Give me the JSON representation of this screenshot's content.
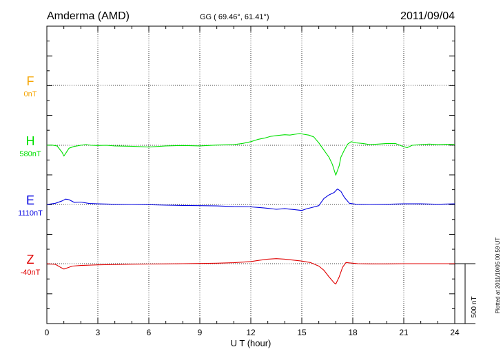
{
  "header": {
    "station": "Amderma (AMD)",
    "coords": "GG ( 69.46°,  61.41°)",
    "date": "2011/09/04"
  },
  "footer": {
    "plotted": "Plotted at 2011/10/05 00:59 UT"
  },
  "chart_data": {
    "type": "line",
    "title": "Amderma (AMD)",
    "xlabel": "U T (hour)",
    "xlim": [
      0,
      24
    ],
    "xticks": [
      "0",
      "3",
      "6",
      "9",
      "12",
      "15",
      "18",
      "21",
      "24"
    ],
    "grid": true,
    "scale_bar": {
      "label": "500 nT",
      "value": 500
    },
    "series": [
      {
        "name": "F",
        "baseline_label": "0nT",
        "color": "#f5a500",
        "x": [],
        "y": []
      },
      {
        "name": "H",
        "baseline_label": "580nT",
        "color": "#00e000",
        "x": [
          0,
          0.3,
          0.6,
          0.9,
          1.0,
          1.1,
          1.3,
          1.6,
          2.0,
          2.3,
          2.6,
          3.0,
          3.5,
          4.0,
          5.0,
          6.0,
          7.0,
          8.0,
          9.0,
          10.0,
          11.0,
          11.5,
          12.0,
          12.4,
          12.8,
          13.2,
          13.6,
          14.0,
          14.3,
          14.6,
          14.9,
          15.1,
          15.4,
          15.7,
          16.0,
          16.2,
          16.4,
          16.6,
          16.8,
          17.0,
          17.1,
          17.2,
          17.3,
          17.5,
          17.7,
          17.9,
          18.2,
          18.6,
          19.0,
          19.5,
          20.0,
          20.5,
          21.0,
          21.2,
          21.5,
          22.0,
          22.5,
          23.0,
          23.5,
          24.0
        ],
        "y": [
          580,
          582,
          575,
          520,
          490,
          510,
          555,
          570,
          580,
          585,
          580,
          578,
          580,
          575,
          572,
          565,
          575,
          578,
          575,
          582,
          585,
          595,
          610,
          628,
          640,
          655,
          662,
          668,
          665,
          672,
          678,
          672,
          665,
          650,
          600,
          560,
          520,
          480,
          420,
          330,
          370,
          410,
          480,
          540,
          590,
          610,
          600,
          595,
          585,
          590,
          595,
          595,
          568,
          560,
          580,
          585,
          590,
          585,
          588,
          585
        ]
      },
      {
        "name": "E",
        "baseline_label": "1110nT",
        "color": "#0000e0",
        "x": [
          0,
          0.5,
          0.9,
          1.1,
          1.3,
          1.6,
          2.0,
          2.5,
          3.0,
          4.0,
          5.0,
          6.0,
          7.0,
          8.0,
          9.0,
          10.0,
          11.0,
          12.0,
          12.5,
          13.0,
          13.5,
          14.0,
          14.5,
          15.0,
          15.3,
          15.6,
          16.0,
          16.3,
          16.6,
          16.9,
          17.1,
          17.3,
          17.5,
          17.8,
          18.2,
          19.0,
          20.0,
          21.0,
          22.0,
          23.0,
          24.0
        ],
        "y": [
          1110,
          1120,
          1140,
          1155,
          1150,
          1128,
          1130,
          1118,
          1115,
          1112,
          1110,
          1108,
          1104,
          1102,
          1100,
          1098,
          1092,
          1090,
          1085,
          1078,
          1070,
          1075,
          1068,
          1060,
          1075,
          1085,
          1100,
          1160,
          1190,
          1210,
          1240,
          1220,
          1170,
          1120,
          1112,
          1110,
          1112,
          1115,
          1115,
          1112,
          1115
        ]
      },
      {
        "name": "Z",
        "baseline_label": "-40nT",
        "color": "#e00000",
        "x": [
          0,
          0.5,
          0.8,
          1.0,
          1.2,
          1.5,
          2.0,
          3.0,
          4.0,
          5.0,
          6.0,
          7.0,
          8.0,
          9.0,
          10.0,
          11.0,
          12.0,
          12.5,
          13.0,
          13.5,
          14.0,
          14.5,
          15.0,
          15.5,
          16.0,
          16.3,
          16.6,
          16.9,
          17.0,
          17.2,
          17.4,
          17.6,
          17.9,
          18.3,
          19.0,
          20.0,
          21.0,
          22.0,
          23.0,
          24.0
        ],
        "y": [
          -40,
          -45,
          -70,
          -85,
          -75,
          -60,
          -55,
          -50,
          -47,
          -44,
          -43,
          -42,
          -40,
          -38,
          -36,
          -32,
          -22,
          -12,
          -2,
          2,
          -2,
          -10,
          -18,
          -30,
          -60,
          -95,
          -150,
          -200,
          -210,
          -150,
          -70,
          -30,
          -35,
          -40,
          -42,
          -42,
          -40,
          -40,
          -40,
          -40
        ]
      }
    ]
  }
}
